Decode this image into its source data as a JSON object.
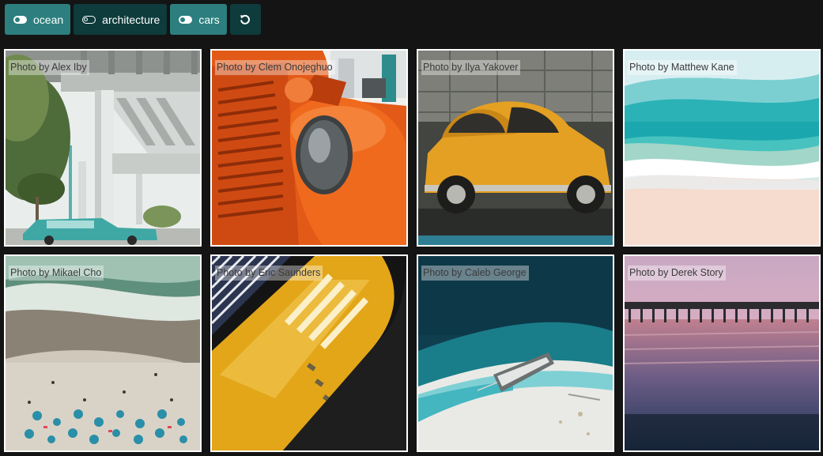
{
  "filters": [
    {
      "label": "ocean",
      "active": true,
      "icon": "toggle-on-icon"
    },
    {
      "label": "architecture",
      "active": false,
      "icon": "toggle-off-icon"
    },
    {
      "label": "cars",
      "active": true,
      "icon": "toggle-on-icon"
    }
  ],
  "reset_icon": "reset-icon",
  "photos": [
    {
      "caption": "Photo by Alex Iby",
      "subject": "architecture"
    },
    {
      "caption": "Photo by Clem Onojeghuo",
      "subject": "cars"
    },
    {
      "caption": "Photo by Ilya Yakover",
      "subject": "cars"
    },
    {
      "caption": "Photo by Matthew Kane",
      "subject": "ocean"
    },
    {
      "caption": "Photo by Mikael Cho",
      "subject": "ocean"
    },
    {
      "caption": "Photo by Eric Saunders",
      "subject": "cars"
    },
    {
      "caption": "Photo by Caleb George",
      "subject": "ocean"
    },
    {
      "caption": "Photo by Derek Story",
      "subject": "ocean"
    }
  ],
  "colors": {
    "active": "#2c7f7e",
    "inactive": "#0e3b3c",
    "background": "#141414"
  }
}
